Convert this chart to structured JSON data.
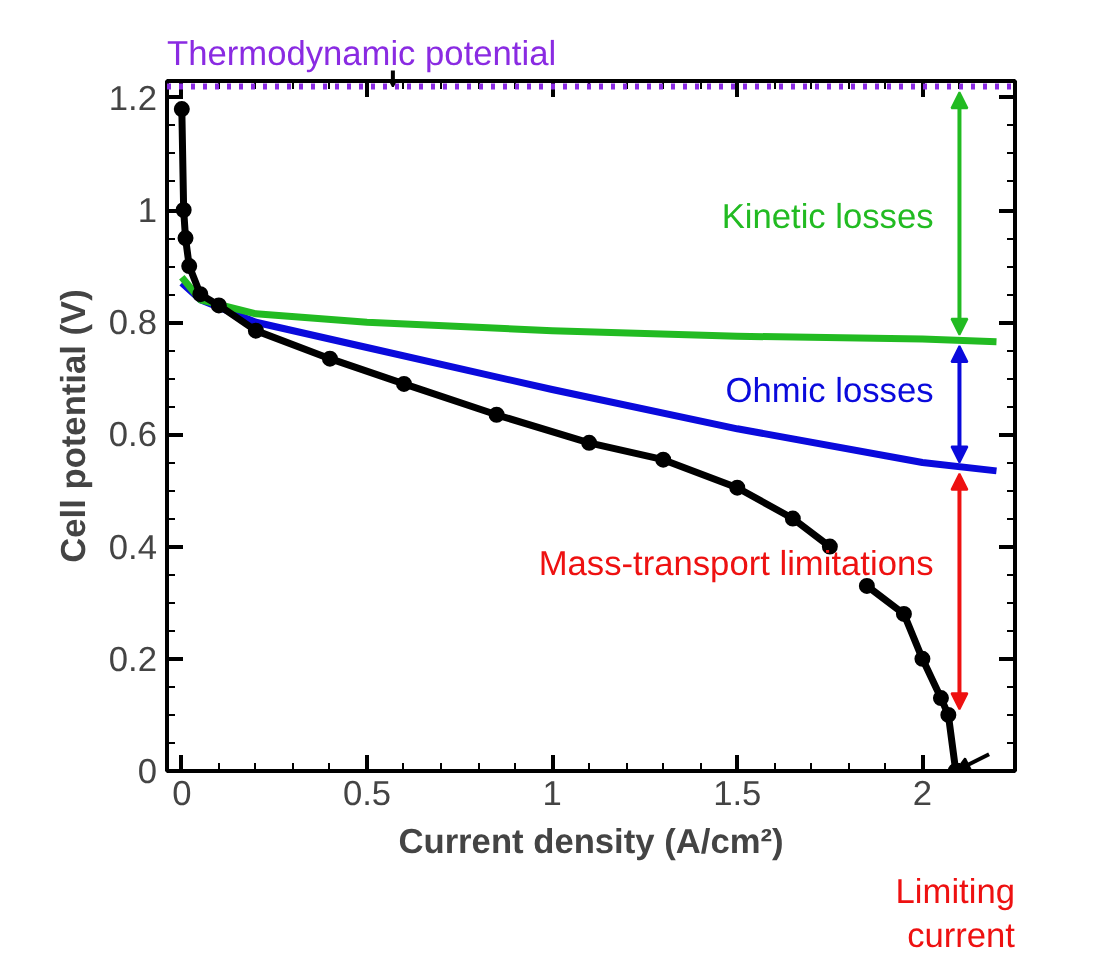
{
  "chart_data": {
    "type": "line",
    "xlabel": "Current density (A/cm²)",
    "ylabel": "Cell potential (V)",
    "xlim": [
      -0.04,
      2.25
    ],
    "ylim": [
      0,
      1.23
    ],
    "xticks": [
      0,
      0.5,
      1,
      1.5,
      2
    ],
    "yticks": [
      0,
      0.2,
      0.4,
      0.6,
      0.8,
      1.0,
      1.2
    ],
    "grid": false,
    "series": [
      {
        "color": "#000000",
        "marker": "circle",
        "x": [
          0.0,
          0.005,
          0.01,
          0.02,
          0.05,
          0.1,
          0.2,
          0.4,
          0.6,
          0.85,
          1.1,
          1.3,
          1.5,
          1.65,
          1.75,
          1.8,
          1.85,
          1.95,
          2.0,
          2.05,
          2.07,
          2.09
        ],
        "values": [
          1.18,
          1.0,
          0.95,
          0.9,
          0.85,
          0.83,
          0.785,
          0.735,
          0.69,
          0.635,
          0.585,
          0.555,
          0.505,
          0.45,
          0.4,
          null,
          0.33,
          0.28,
          0.2,
          0.13,
          0.1,
          0.0
        ]
      },
      {
        "color": "#22bb22",
        "x": [
          0.0,
          0.05,
          0.2,
          0.5,
          1.0,
          1.5,
          2.0,
          2.2
        ],
        "values": [
          0.88,
          0.84,
          0.815,
          0.8,
          0.785,
          0.775,
          0.77,
          0.765
        ]
      },
      {
        "color": "#0a0adc",
        "x": [
          0.0,
          0.05,
          0.2,
          0.5,
          1.0,
          1.5,
          2.0,
          2.2
        ],
        "values": [
          0.87,
          0.84,
          0.8,
          0.755,
          0.68,
          0.61,
          0.55,
          0.535
        ]
      }
    ],
    "ref_lines": [
      {
        "axis": "y",
        "value": 1.22,
        "color": "#8a2be2",
        "line_style": "dotted"
      }
    ],
    "annotations": [
      {
        "text": "Thermodynamic potential",
        "x": 0.57,
        "y": 1.22
      },
      "Kinetic losses",
      {
        "text": "Ohmic losses",
        "x": 2.1,
        "y": 0.54
      },
      "Mass-transport limitations",
      {
        "text": "Limiting current",
        "x": 2.09,
        "y": 0
      }
    ]
  }
}
